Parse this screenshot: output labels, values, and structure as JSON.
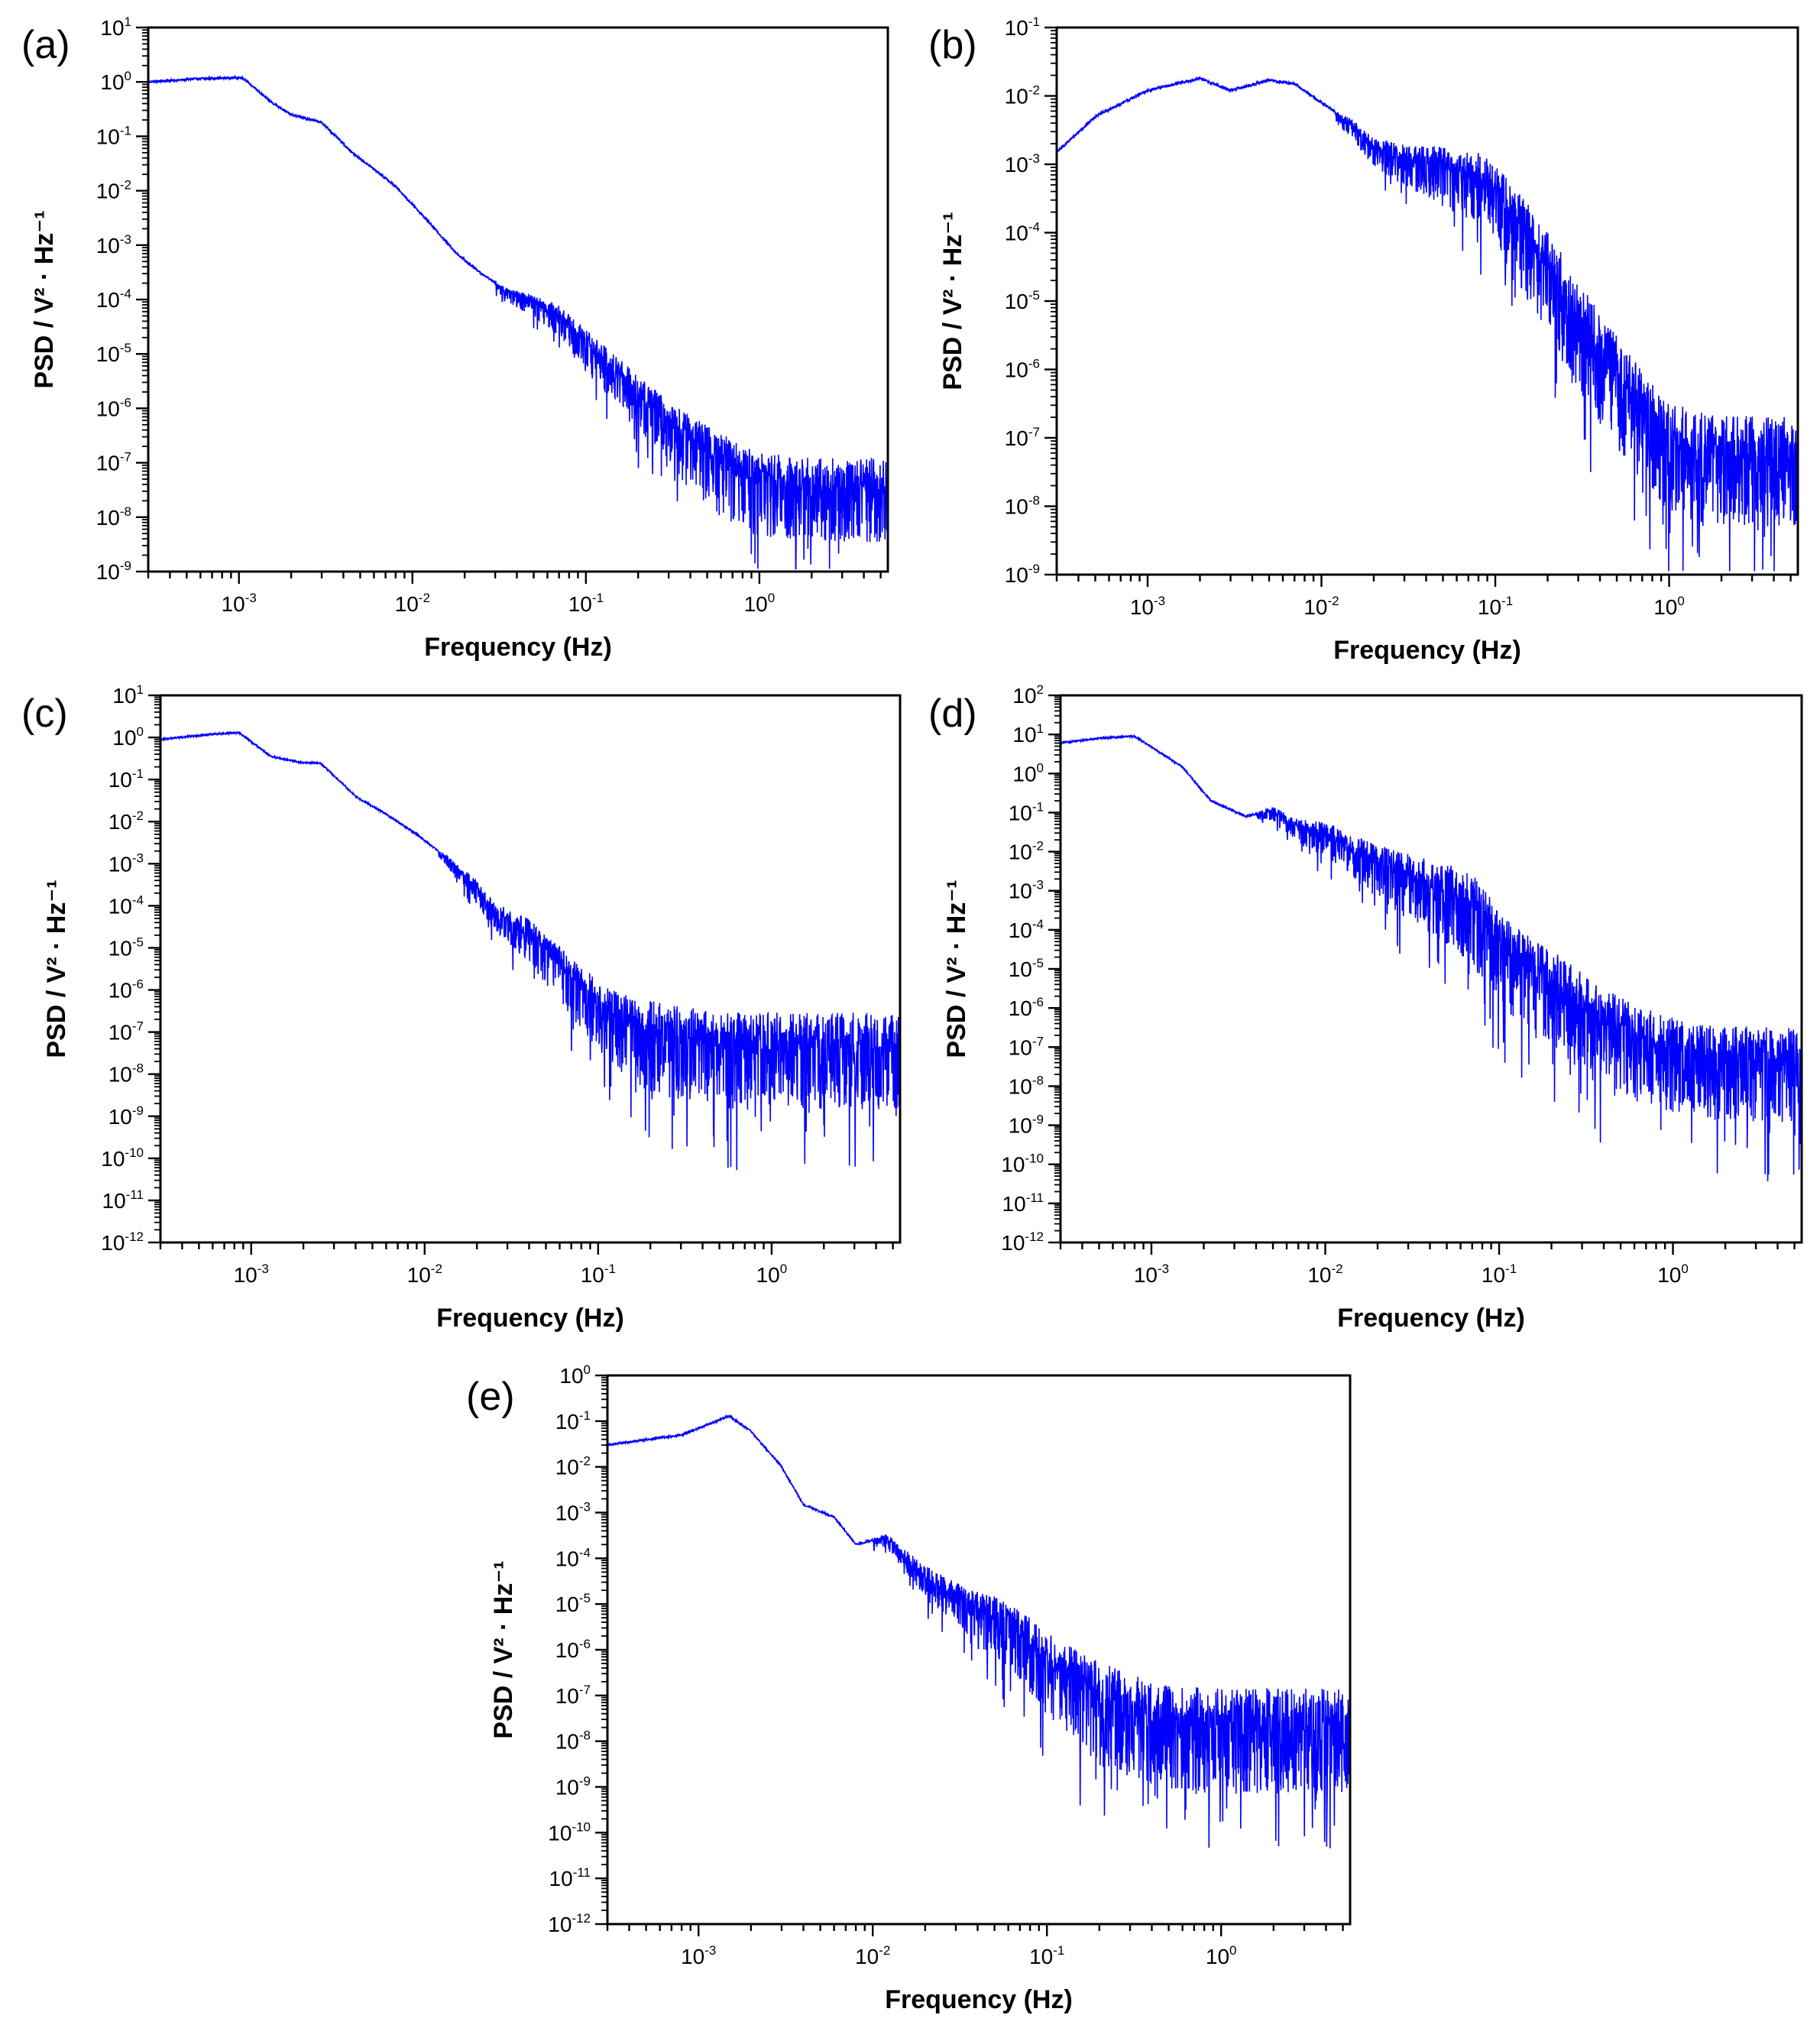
{
  "figure": {
    "line_color": "#0000ff",
    "frame_color": "#000000"
  },
  "chart_data": [
    {
      "id": "a",
      "panel_label": "(a)",
      "type": "line",
      "xscale": "log",
      "yscale": "log",
      "xlabel": "Frequency (Hz)",
      "ylabel": "PSD / V² · Hz⁻¹",
      "xlim": [
        0.0003,
        5.5
      ],
      "ylim_exp": [
        -9,
        1
      ],
      "xtick_exp": [
        -3,
        -2,
        -1,
        0
      ],
      "xticks": [
        "10^-3",
        "10^-2",
        "10^-1",
        "10^0"
      ],
      "yticks": [
        "10^-9",
        "10^-8",
        "10^-7",
        "10^-6",
        "10^-5",
        "10^-4",
        "10^-3",
        "10^-2",
        "10^-1",
        "10^0",
        "10^1"
      ],
      "trace": [
        [
          0.0003,
          1.0
        ],
        [
          0.0006,
          1.15
        ],
        [
          0.00105,
          1.2
        ],
        [
          0.0015,
          0.45
        ],
        [
          0.002,
          0.25
        ],
        [
          0.003,
          0.18
        ],
        [
          0.0045,
          0.05
        ],
        [
          0.006,
          0.025
        ],
        [
          0.008,
          0.012
        ],
        [
          0.012,
          0.003
        ],
        [
          0.018,
          0.0007
        ],
        [
          0.025,
          0.0003
        ],
        [
          0.035,
          0.00015
        ],
        [
          0.05,
          0.0001
        ],
        [
          0.07,
          6e-05
        ],
        [
          0.1,
          2e-05
        ],
        [
          0.15,
          6e-06
        ],
        [
          0.2,
          2.5e-06
        ],
        [
          0.3,
          8e-07
        ],
        [
          0.5,
          2.5e-07
        ],
        [
          0.8,
          1e-07
        ],
        [
          1.0,
          8e-08
        ],
        [
          2.0,
          6e-08
        ],
        [
          5.5,
          6e-08
        ]
      ],
      "noise_start_hz": 0.03,
      "noise_floor_band_dec": [
        0.9,
        1.3
      ]
    },
    {
      "id": "b",
      "panel_label": "(b)",
      "type": "line",
      "xscale": "log",
      "yscale": "log",
      "xlabel": "Frequency (Hz)",
      "ylabel": "PSD / V² · Hz⁻¹",
      "xlim": [
        0.0003,
        5.5
      ],
      "ylim_exp": [
        -9,
        -1
      ],
      "xtick_exp": [
        -3,
        -2,
        -1,
        0
      ],
      "xticks": [
        "10^-3",
        "10^-2",
        "10^-1",
        "10^0"
      ],
      "yticks": [
        "10^-9",
        "10^-8",
        "10^-7",
        "10^-6",
        "10^-5",
        "10^-4",
        "10^-3",
        "10^-2",
        "10^-1"
      ],
      "trace": [
        [
          0.0003,
          0.0015
        ],
        [
          0.0005,
          0.005
        ],
        [
          0.001,
          0.012
        ],
        [
          0.002,
          0.018
        ],
        [
          0.003,
          0.012
        ],
        [
          0.005,
          0.017
        ],
        [
          0.007,
          0.015
        ],
        [
          0.01,
          0.008
        ],
        [
          0.015,
          0.004
        ],
        [
          0.02,
          0.002
        ],
        [
          0.03,
          0.0015
        ],
        [
          0.05,
          0.0012
        ],
        [
          0.08,
          0.0009
        ],
        [
          0.1,
          0.0006
        ],
        [
          0.15,
          0.00015
        ],
        [
          0.2,
          5e-05
        ],
        [
          0.3,
          1e-05
        ],
        [
          0.4,
          3e-06
        ],
        [
          0.6,
          8e-07
        ],
        [
          0.8,
          3e-07
        ],
        [
          1.0,
          1.5e-07
        ],
        [
          2.0,
          1e-07
        ],
        [
          5.5,
          1e-07
        ]
      ],
      "noise_start_hz": 0.012,
      "noise_floor_band_dec": [
        1.0,
        1.3
      ]
    },
    {
      "id": "c",
      "panel_label": "(c)",
      "type": "line",
      "xscale": "log",
      "yscale": "log",
      "xlabel": "Frequency (Hz)",
      "ylabel": "PSD / V² · Hz⁻¹",
      "xlim": [
        0.0003,
        5.5
      ],
      "ylim_exp": [
        -12,
        1
      ],
      "xtick_exp": [
        -3,
        -2,
        -1,
        0
      ],
      "xticks": [
        "10^-3",
        "10^-2",
        "10^-1",
        "10^0"
      ],
      "yticks": [
        "10^-12",
        "10^-11",
        "10^-10",
        "10^-9",
        "10^-8",
        "10^-7",
        "10^-6",
        "10^-5",
        "10^-4",
        "10^-3",
        "10^-2",
        "10^-1",
        "10^0",
        "10^1"
      ],
      "trace": [
        [
          0.0003,
          0.9
        ],
        [
          0.0006,
          1.2
        ],
        [
          0.00085,
          1.3
        ],
        [
          0.0013,
          0.35
        ],
        [
          0.002,
          0.25
        ],
        [
          0.0025,
          0.25
        ],
        [
          0.004,
          0.04
        ],
        [
          0.006,
          0.015
        ],
        [
          0.009,
          0.005
        ],
        [
          0.012,
          0.002
        ],
        [
          0.018,
          0.0005
        ],
        [
          0.025,
          0.0001
        ],
        [
          0.04,
          3e-05
        ],
        [
          0.06,
          6e-06
        ],
        [
          0.1,
          8e-07
        ],
        [
          0.15,
          3e-07
        ],
        [
          0.2,
          2e-07
        ],
        [
          0.3,
          1.5e-07
        ],
        [
          0.5,
          1e-07
        ],
        [
          1.0,
          1e-07
        ],
        [
          5.5,
          1e-07
        ]
      ],
      "noise_start_hz": 0.012,
      "noise_floor_band_dec": [
        1.4,
        2.0
      ]
    },
    {
      "id": "d",
      "panel_label": "(d)",
      "type": "line",
      "xscale": "log",
      "yscale": "log",
      "xlabel": "Frequency (Hz)",
      "ylabel": "PSD / V² · Hz⁻¹",
      "xlim": [
        0.0003,
        5.5
      ],
      "ylim_exp": [
        -12,
        2
      ],
      "xtick_exp": [
        -3,
        -2,
        -1,
        0
      ],
      "xticks": [
        "10^-3",
        "10^-2",
        "10^-1",
        "10^0"
      ],
      "yticks": [
        "10^-12",
        "10^-11",
        "10^-10",
        "10^-9",
        "10^-8",
        "10^-7",
        "10^-6",
        "10^-5",
        "10^-4",
        "10^-3",
        "10^-2",
        "10^-1",
        "10^0",
        "10^1",
        "10^2"
      ],
      "trace": [
        [
          0.0003,
          6
        ],
        [
          0.0005,
          8
        ],
        [
          0.0008,
          9
        ],
        [
          0.0015,
          1.5
        ],
        [
          0.0022,
          0.2
        ],
        [
          0.0035,
          0.08
        ],
        [
          0.005,
          0.12
        ],
        [
          0.007,
          0.05
        ],
        [
          0.01,
          0.04
        ],
        [
          0.015,
          0.015
        ],
        [
          0.02,
          0.008
        ],
        [
          0.03,
          0.004
        ],
        [
          0.05,
          0.002
        ],
        [
          0.07,
          0.001
        ],
        [
          0.1,
          0.0001
        ],
        [
          0.2,
          1e-05
        ],
        [
          0.4,
          1e-06
        ],
        [
          0.8,
          2.5e-07
        ],
        [
          1.5,
          1.2e-07
        ],
        [
          5.5,
          1e-07
        ]
      ],
      "noise_start_hz": 0.004,
      "noise_floor_band_dec": [
        1.4,
        2.2
      ]
    },
    {
      "id": "e",
      "panel_label": "(e)",
      "type": "line",
      "xscale": "log",
      "yscale": "log",
      "xlabel": "Frequency (Hz)",
      "ylabel": "PSD / V² · Hz⁻¹",
      "xlim": [
        0.0003,
        5.5
      ],
      "ylim_exp": [
        -12,
        0
      ],
      "xtick_exp": [
        -3,
        -2,
        -1,
        0
      ],
      "xticks": [
        "10^-3",
        "10^-2",
        "10^-1",
        "10^0"
      ],
      "yticks": [
        "10^-12",
        "10^-11",
        "10^-10",
        "10^-9",
        "10^-8",
        "10^-7",
        "10^-6",
        "10^-5",
        "10^-4",
        "10^-3",
        "10^-2",
        "10^-1",
        "10^0"
      ],
      "trace": [
        [
          0.0003,
          0.03
        ],
        [
          0.0008,
          0.05
        ],
        [
          0.0015,
          0.13
        ],
        [
          0.002,
          0.06
        ],
        [
          0.003,
          0.01
        ],
        [
          0.004,
          0.0015
        ],
        [
          0.006,
          0.0008
        ],
        [
          0.008,
          0.0002
        ],
        [
          0.012,
          0.0003
        ],
        [
          0.02,
          5e-05
        ],
        [
          0.03,
          2e-05
        ],
        [
          0.05,
          8e-06
        ],
        [
          0.07,
          4e-06
        ],
        [
          0.1,
          1e-06
        ],
        [
          0.2,
          2e-07
        ],
        [
          0.3,
          1e-07
        ],
        [
          0.5,
          6e-08
        ],
        [
          1.0,
          5e-08
        ],
        [
          5.5,
          5e-08
        ]
      ],
      "noise_start_hz": 0.01,
      "noise_floor_band_dec": [
        1.4,
        2.0
      ]
    }
  ]
}
